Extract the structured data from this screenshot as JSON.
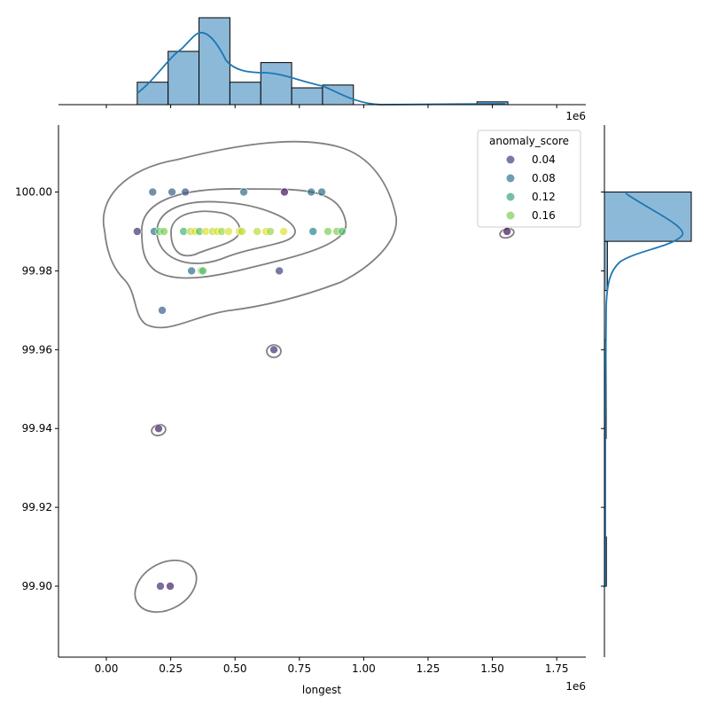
{
  "chart_data": {
    "type": "scatter",
    "subtype": "jointplot with KDE contours and marginal histograms",
    "xlabel": "longest",
    "ylabel": "",
    "x_offset_label": "1e6",
    "x_scale": 1000000,
    "xlim": [
      -0.186,
      1.863
    ],
    "ylim": [
      99.882,
      100.017
    ],
    "x_ticks": [
      "0.00",
      "0.25",
      "0.50",
      "0.75",
      "1.00",
      "1.25",
      "1.50",
      "1.75"
    ],
    "x_tick_values": [
      0,
      0.25,
      0.5,
      0.75,
      1.0,
      1.25,
      1.5,
      1.75
    ],
    "y_ticks": [
      "100.00",
      "99.98",
      "99.96",
      "99.94",
      "99.92",
      "99.90"
    ],
    "y_tick_values": [
      100.0,
      99.98,
      99.96,
      99.94,
      99.92,
      99.9
    ],
    "grid": false,
    "hue": {
      "title": "anomaly_score",
      "colormap": "viridis",
      "range": [
        0,
        0.2
      ],
      "legend_entries": [
        {
          "label": "0.04",
          "value": 0.04
        },
        {
          "label": "0.08",
          "value": 0.08
        },
        {
          "label": "0.12",
          "value": 0.12
        },
        {
          "label": "0.16",
          "value": 0.16
        }
      ],
      "legend_placement": "top-right"
    },
    "points": [
      {
        "x": 0.18,
        "y": 100.0,
        "score": 0.06
      },
      {
        "x": 0.255,
        "y": 100.0,
        "score": 0.06
      },
      {
        "x": 0.307,
        "y": 100.0,
        "score": 0.05
      },
      {
        "x": 0.534,
        "y": 100.0,
        "score": 0.07
      },
      {
        "x": 0.692,
        "y": 100.0,
        "score": 0.01
      },
      {
        "x": 0.796,
        "y": 100.0,
        "score": 0.07
      },
      {
        "x": 0.837,
        "y": 100.0,
        "score": 0.07
      },
      {
        "x": 0.12,
        "y": 99.99,
        "score": 0.03
      },
      {
        "x": 0.186,
        "y": 99.99,
        "score": 0.08
      },
      {
        "x": 0.207,
        "y": 99.99,
        "score": 0.15
      },
      {
        "x": 0.224,
        "y": 99.99,
        "score": 0.16
      },
      {
        "x": 0.3,
        "y": 99.99,
        "score": 0.13
      },
      {
        "x": 0.327,
        "y": 99.99,
        "score": 0.18
      },
      {
        "x": 0.344,
        "y": 99.99,
        "score": 0.19
      },
      {
        "x": 0.362,
        "y": 99.99,
        "score": 0.14
      },
      {
        "x": 0.386,
        "y": 99.99,
        "score": 0.19
      },
      {
        "x": 0.413,
        "y": 99.99,
        "score": 0.18
      },
      {
        "x": 0.43,
        "y": 99.99,
        "score": 0.19
      },
      {
        "x": 0.448,
        "y": 99.99,
        "score": 0.17
      },
      {
        "x": 0.475,
        "y": 99.99,
        "score": 0.19
      },
      {
        "x": 0.517,
        "y": 99.99,
        "score": 0.19
      },
      {
        "x": 0.527,
        "y": 99.99,
        "score": 0.18
      },
      {
        "x": 0.586,
        "y": 99.99,
        "score": 0.18
      },
      {
        "x": 0.62,
        "y": 99.99,
        "score": 0.19
      },
      {
        "x": 0.637,
        "y": 99.99,
        "score": 0.17
      },
      {
        "x": 0.689,
        "y": 99.99,
        "score": 0.19
      },
      {
        "x": 0.803,
        "y": 99.99,
        "score": 0.09
      },
      {
        "x": 0.861,
        "y": 99.99,
        "score": 0.16
      },
      {
        "x": 0.896,
        "y": 99.99,
        "score": 0.16
      },
      {
        "x": 0.916,
        "y": 99.99,
        "score": 0.14
      },
      {
        "x": 1.557,
        "y": 99.99,
        "score": 0.01
      },
      {
        "x": 0.331,
        "y": 99.98,
        "score": 0.07
      },
      {
        "x": 0.369,
        "y": 99.98,
        "score": 0.16
      },
      {
        "x": 0.375,
        "y": 99.98,
        "score": 0.14
      },
      {
        "x": 0.672,
        "y": 99.98,
        "score": 0.04
      },
      {
        "x": 0.217,
        "y": 99.97,
        "score": 0.06
      },
      {
        "x": 0.651,
        "y": 99.96,
        "score": 0.03
      },
      {
        "x": 0.203,
        "y": 99.94,
        "score": 0.02
      },
      {
        "x": 0.21,
        "y": 99.9,
        "score": 0.03
      },
      {
        "x": 0.248,
        "y": 99.9,
        "score": 0.02
      }
    ],
    "marginal_x_hist": {
      "bin_start": 0.12,
      "bin_width": 0.12,
      "counts": [
        8,
        19,
        31,
        8,
        15,
        6,
        7,
        0,
        0,
        0,
        0,
        1
      ],
      "kde": true
    },
    "marginal_y_hist": {
      "bin_start": 99.9,
      "bin_width": 0.0125,
      "counts": [
        2,
        0,
        0,
        1,
        1,
        0,
        3,
        88
      ],
      "kde": true
    },
    "colors": {
      "hist_fill": "#8db9d9",
      "kde_line": "#1f77b4",
      "contour": "#808080"
    }
  }
}
